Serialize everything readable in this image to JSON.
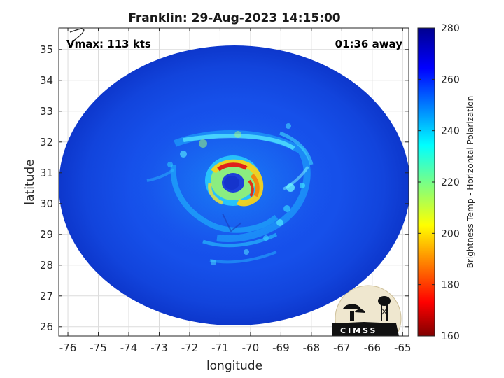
{
  "chart_data": {
    "type": "heatmap",
    "title": "Franklin: 29-Aug-2023 14:15:00",
    "xlabel": "longitude",
    "ylabel": "latitude",
    "xlim": [
      -76.3,
      -64.8
    ],
    "ylim": [
      25.7,
      35.7
    ],
    "xticks": [
      "-76",
      "-75",
      "-74",
      "-73",
      "-72",
      "-71",
      "-70",
      "-69",
      "-68",
      "-67",
      "-66",
      "-65"
    ],
    "yticks": [
      "26",
      "27",
      "28",
      "29",
      "30",
      "31",
      "32",
      "33",
      "34",
      "35"
    ],
    "grid": true,
    "annotations": {
      "vmax": "Vmax: 113 kts",
      "time_away": "01:36 away"
    },
    "storm_center": {
      "lon": -70.7,
      "lat": 30.6
    },
    "colorbar": {
      "label": "Brightness Temp - Horizontal Polarization",
      "range": [
        160,
        280
      ],
      "ticks": [
        "160",
        "180",
        "200",
        "220",
        "240",
        "260",
        "280"
      ],
      "colormap": "jet"
    },
    "logo_text": "CIMSS"
  }
}
